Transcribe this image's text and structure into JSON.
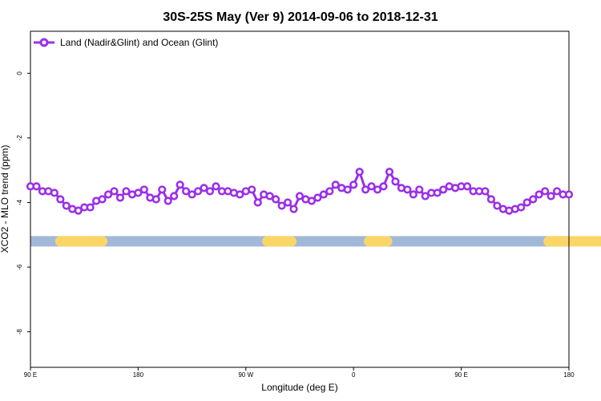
{
  "chart_data": {
    "type": "line",
    "title": "30S-25S May (Ver 9)   2014-09-06 to 2018-12-31",
    "xlabel": "Longitude (deg E)",
    "ylabel": "XCO2 - MLO trend (ppm)",
    "xlim": [
      90,
      540
    ],
    "ylim": [
      -9.1,
      1.3
    ],
    "x_ticks": [
      {
        "value": 90,
        "label": "90 E"
      },
      {
        "value": 180,
        "label": "180"
      },
      {
        "value": 270,
        "label": "90 W"
      },
      {
        "value": 360,
        "label": "0"
      },
      {
        "value": 450,
        "label": "90 E"
      },
      {
        "value": 540,
        "label": "180"
      }
    ],
    "y_ticks": [
      {
        "value": 0,
        "label": "0"
      },
      {
        "value": -2,
        "label": "-2"
      },
      {
        "value": -4,
        "label": "-4"
      },
      {
        "value": -6,
        "label": "-6"
      },
      {
        "value": -8,
        "label": "-8"
      }
    ],
    "legend_position": "top-left",
    "grid": false,
    "series": [
      {
        "name": "Land (Nadir&Glint) and Ocean (Glint)",
        "color": "#9b30e8",
        "x": [
          90,
          95,
          100,
          105,
          110,
          115,
          120,
          125,
          130,
          135,
          140,
          145,
          150,
          155,
          160,
          165,
          170,
          175,
          180,
          185,
          190,
          195,
          200,
          205,
          210,
          215,
          220,
          225,
          230,
          235,
          240,
          245,
          250,
          255,
          260,
          265,
          270,
          275,
          280,
          285,
          290,
          295,
          300,
          305,
          310,
          315,
          320,
          325,
          330,
          335,
          340,
          345,
          350,
          355,
          360,
          365,
          370,
          375,
          380,
          385,
          390,
          395,
          400,
          405,
          410,
          415,
          420,
          425,
          430,
          435,
          440,
          445,
          450,
          455,
          460,
          465,
          470,
          475,
          480,
          485,
          490,
          495,
          500,
          505,
          510,
          515,
          520,
          525,
          530,
          535,
          540
        ],
        "y": [
          -3.5,
          -3.5,
          -3.65,
          -3.65,
          -3.7,
          -3.9,
          -4.1,
          -4.2,
          -4.25,
          -4.15,
          -4.15,
          -3.95,
          -3.9,
          -3.75,
          -3.65,
          -3.85,
          -3.65,
          -3.75,
          -3.7,
          -3.6,
          -3.85,
          -3.9,
          -3.6,
          -3.95,
          -3.8,
          -3.45,
          -3.65,
          -3.75,
          -3.65,
          -3.55,
          -3.65,
          -3.5,
          -3.65,
          -3.65,
          -3.7,
          -3.75,
          -3.65,
          -3.6,
          -4.0,
          -3.75,
          -3.8,
          -3.9,
          -4.1,
          -4.0,
          -4.2,
          -3.8,
          -3.9,
          -3.95,
          -3.85,
          -3.75,
          -3.65,
          -3.45,
          -3.55,
          -3.6,
          -3.45,
          -3.05,
          -3.6,
          -3.5,
          -3.6,
          -3.5,
          -3.05,
          -3.35,
          -3.55,
          -3.6,
          -3.75,
          -3.6,
          -3.8,
          -3.7,
          -3.7,
          -3.6,
          -3.5,
          -3.55,
          -3.5,
          -3.5,
          -3.65,
          -3.65,
          -3.65,
          -3.9,
          -4.1,
          -4.2,
          -4.25,
          -4.2,
          -4.15,
          -4.0,
          -3.9,
          -3.75,
          -3.65,
          -3.8,
          -3.65,
          -3.75,
          -3.75
        ]
      }
    ],
    "land_ocean_band": {
      "y": -5.2,
      "ocean_color": "#a2b8d8",
      "land_color": "#fbd667",
      "land_spans": [
        [
          115,
          150
        ],
        [
          288,
          308
        ],
        [
          373,
          388
        ],
        [
          523,
          578
        ]
      ]
    }
  }
}
